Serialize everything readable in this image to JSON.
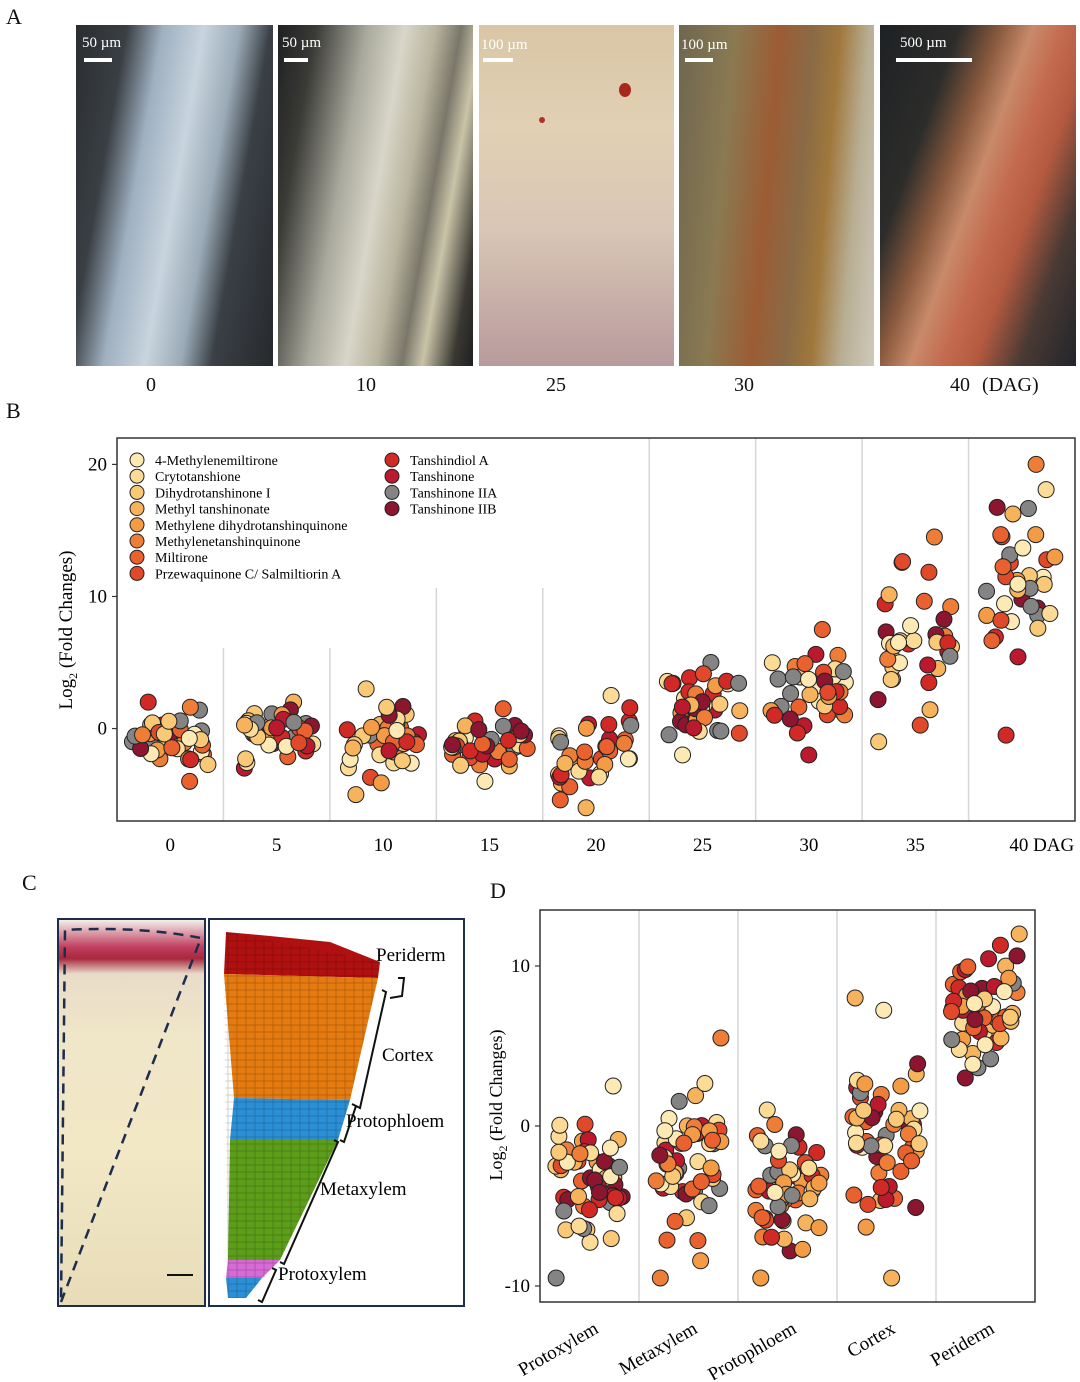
{
  "panels": {
    "a": "A",
    "b": "B",
    "c": "C",
    "d": "D"
  },
  "panel_a": {
    "images": [
      {
        "scale": "50 µm",
        "label": "0"
      },
      {
        "scale": "50 µm",
        "label": "10"
      },
      {
        "scale": "100 µm",
        "label": "25"
      },
      {
        "scale": "100 µm",
        "label": "30"
      },
      {
        "scale": "500 µm",
        "label": "40"
      }
    ],
    "unit": "(DAG)"
  },
  "panel_c": {
    "layers": [
      {
        "name": "Periderm",
        "color": "#b01010"
      },
      {
        "name": "Cortex",
        "color": "#e47a10"
      },
      {
        "name": "Protophloem",
        "color": "#2b8fd6"
      },
      {
        "name": "Metaxylem",
        "color": "#5c9e1a"
      },
      {
        "name": "Protoxylem",
        "color": "#d86ad6"
      }
    ]
  },
  "legend": {
    "entries": [
      {
        "name": "4-Methylenemiltirone",
        "color": "#fde9b4"
      },
      {
        "name": "Crytotanshione",
        "color": "#fbdb96"
      },
      {
        "name": "Dihydrotanshinone I",
        "color": "#f9c978"
      },
      {
        "name": "Methyl tanshinonate",
        "color": "#f7b35c"
      },
      {
        "name": "Methylene dihydrotanshinquinone",
        "color": "#f49b45"
      },
      {
        "name": "Methylenetanshinquinone",
        "color": "#ee7d37"
      },
      {
        "name": "Miltirone",
        "color": "#e8612f"
      },
      {
        "name": "Przewaquinone C/ Salmiltiorin A",
        "color": "#e04a2b"
      },
      {
        "name": "Tanshindiol A",
        "color": "#d12a26"
      },
      {
        "name": "Tanshinone",
        "color": "#bb1a2e"
      },
      {
        "name": "Tanshinone IIA",
        "color": "#848484"
      },
      {
        "name": "Tanshinone IIB",
        "color": "#8c1530"
      }
    ]
  },
  "chart_data": [
    {
      "type": "scatter",
      "title": "",
      "ylabel_main": "Log",
      "ylabel_sub": "2",
      "ylabel_rest": " (Fold Changes)",
      "categories": [
        "0",
        "5",
        "10",
        "15",
        "20",
        "25",
        "30",
        "35",
        "40 DAG"
      ],
      "yticks": [
        0,
        10,
        20
      ],
      "ylim": [
        -7,
        22
      ],
      "grid": "vertical separators",
      "groups": [
        {
          "center": 0,
          "min": -4,
          "max": 2
        },
        {
          "center": 0.2,
          "min": -3,
          "max": 2
        },
        {
          "center": -1.5,
          "min": -5,
          "max": 3
        },
        {
          "center": -1.5,
          "min": -4,
          "max": 1.5
        },
        {
          "center": -0.5,
          "min": -6,
          "max": 2.5
        },
        {
          "center": 1,
          "min": -2,
          "max": 5
        },
        {
          "center": 2,
          "min": -2,
          "max": 7.5
        },
        {
          "center": 5,
          "min": -1,
          "max": 14.5
        },
        {
          "center": 5,
          "min": -0.5,
          "max": 20
        }
      ]
    },
    {
      "type": "scatter",
      "ylabel_main": "Log",
      "ylabel_sub": "2",
      "ylabel_rest": " (Fold Changes)",
      "categories": [
        "Protoxylem",
        "Metaxylem",
        "Protophloem",
        "Cortex",
        "Periderm"
      ],
      "yticks": [
        -10,
        0,
        10
      ],
      "ylim": [
        -11,
        13.5
      ],
      "groups": [
        {
          "center": -2,
          "min": -9.5,
          "max": 2.5
        },
        {
          "center": -1.5,
          "min": -9.5,
          "max": 5.5
        },
        {
          "center": -4,
          "min": -9.5,
          "max": 1
        },
        {
          "center": 0.5,
          "min": -9.5,
          "max": 8
        },
        {
          "center": 7.5,
          "min": 3,
          "max": 12
        }
      ]
    }
  ]
}
